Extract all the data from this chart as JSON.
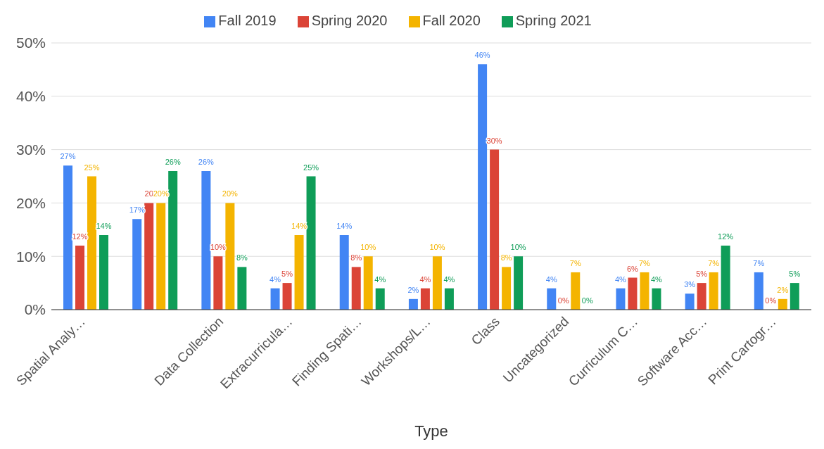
{
  "chart_data": {
    "type": "bar",
    "xlabel": "Type",
    "categories": [
      "Spatial Analy…",
      null,
      "Data Collection",
      "Extracurricula…",
      "Finding Spati…",
      "Workshops/L…",
      "Class",
      "Uncategorized",
      "Curriculum C…",
      "Software Acc…",
      "Print Cartogr…"
    ],
    "series": [
      {
        "name": "Fall 2019",
        "color": "#4285f4",
        "values": [
          27,
          17,
          26,
          4,
          14,
          2,
          46,
          4,
          4,
          3,
          7
        ],
        "value_labels": [
          "27%",
          "17%",
          "26%",
          "4%",
          "14%",
          "2%",
          "46%",
          "4%",
          "4%",
          "3%",
          "7%"
        ]
      },
      {
        "name": "Spring 2020",
        "color": "#db4437",
        "values": [
          12,
          20,
          10,
          5,
          8,
          4,
          30,
          0,
          6,
          5,
          0
        ],
        "value_labels": [
          "12%",
          "20",
          "10%",
          "5%",
          "8%",
          "4%",
          "30%",
          "0%",
          "6%",
          "5%",
          "0%"
        ]
      },
      {
        "name": "Fall 2020",
        "color": "#f4b400",
        "values": [
          25,
          20,
          20,
          14,
          10,
          10,
          8,
          7,
          7,
          7,
          2
        ],
        "value_labels": [
          "25%",
          "20%",
          "20%",
          "14%",
          "10%",
          "10%",
          "8%",
          "7%",
          "7%",
          "7%",
          "2%"
        ]
      },
      {
        "name": "Spring 2021",
        "color": "#0f9d58",
        "values": [
          14,
          26,
          8,
          25,
          4,
          4,
          10,
          0,
          4,
          12,
          5
        ],
        "value_labels": [
          "14%",
          "26%",
          "8%",
          "25%",
          "4%",
          "4%",
          "10%",
          "0%",
          "4%",
          "12%",
          "5%"
        ]
      }
    ],
    "ylim": [
      0,
      50
    ],
    "yticks": [
      {
        "value": 0,
        "label": "0%"
      },
      {
        "value": 10,
        "label": "10%"
      },
      {
        "value": 20,
        "label": "20%"
      },
      {
        "value": 30,
        "label": "30%"
      },
      {
        "value": 40,
        "label": "40%"
      },
      {
        "value": 50,
        "label": "50%"
      }
    ],
    "grid": "y",
    "legend": "top"
  }
}
